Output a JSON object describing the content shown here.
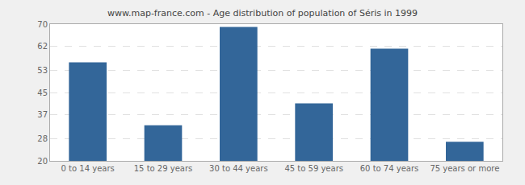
{
  "chart_data": {
    "type": "bar",
    "title": "www.map-france.com - Age distribution of population of Séris in 1999",
    "categories": [
      "0 to 14 years",
      "15 to 29 years",
      "30 to 44 years",
      "45 to 59 years",
      "60 to 74 years",
      "75 years or more"
    ],
    "values": [
      56,
      33,
      69,
      41,
      61,
      27
    ],
    "color": "#336699",
    "ylim": [
      20,
      70
    ],
    "yticks": [
      20,
      28,
      37,
      45,
      53,
      62,
      70
    ],
    "grid": true
  }
}
